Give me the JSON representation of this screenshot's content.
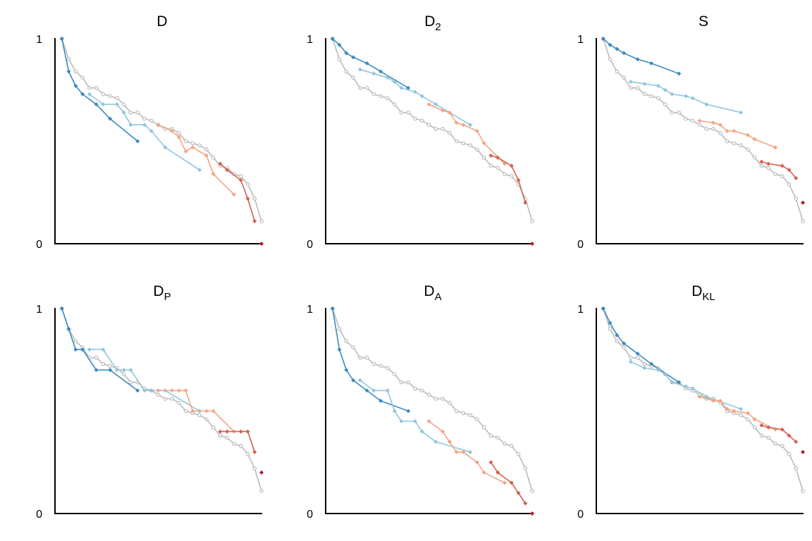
{
  "chart_data": [
    {
      "type": "line",
      "title": "D",
      "title_sub": "",
      "xlim": [
        0,
        30
      ],
      "ylim": [
        0,
        1
      ],
      "yticks": [
        "0",
        "1"
      ],
      "series": [
        {
          "name": "gray",
          "color": "#bbbbbb",
          "x": [
            1,
            2,
            3,
            4,
            5,
            6,
            7,
            8,
            9,
            10,
            11,
            12,
            13,
            14,
            15,
            16,
            17,
            18,
            19,
            20,
            21,
            22,
            23,
            24,
            25,
            26,
            27,
            28,
            29,
            30
          ],
          "y": [
            1.0,
            0.9,
            0.84,
            0.81,
            0.76,
            0.76,
            0.73,
            0.72,
            0.71,
            0.68,
            0.64,
            0.64,
            0.61,
            0.6,
            0.58,
            0.56,
            0.56,
            0.54,
            0.5,
            0.49,
            0.48,
            0.46,
            0.42,
            0.38,
            0.37,
            0.34,
            0.33,
            0.29,
            0.22,
            0.11
          ]
        },
        {
          "name": "dark-blue",
          "color": "#3d8bbf",
          "x": [
            1,
            2,
            3,
            4,
            6,
            8,
            12
          ],
          "y": [
            1.0,
            0.84,
            0.77,
            0.73,
            0.68,
            0.61,
            0.5
          ]
        },
        {
          "name": "light-blue",
          "color": "#92c5de",
          "x": [
            5,
            7,
            9,
            10,
            11,
            13,
            14,
            16,
            21
          ],
          "y": [
            0.73,
            0.68,
            0.68,
            0.64,
            0.58,
            0.58,
            0.55,
            0.47,
            0.36
          ]
        },
        {
          "name": "orange",
          "color": "#f4a582",
          "x": [
            15,
            17,
            18,
            19,
            20,
            22,
            23,
            26
          ],
          "y": [
            0.58,
            0.55,
            0.52,
            0.45,
            0.47,
            0.43,
            0.34,
            0.24
          ]
        },
        {
          "name": "red",
          "color": "#d6604d",
          "x": [
            24,
            25,
            27,
            28,
            29
          ],
          "y": [
            0.39,
            0.36,
            0.31,
            0.22,
            0.11
          ]
        },
        {
          "name": "dark-red",
          "color": "#b2182b",
          "x": [
            30
          ],
          "y": [
            0.0
          ]
        }
      ]
    },
    {
      "type": "line",
      "title": "D",
      "title_sub": "2",
      "xlim": [
        0,
        30
      ],
      "ylim": [
        0,
        1
      ],
      "yticks": [
        "0",
        "1"
      ],
      "series": [
        {
          "name": "gray",
          "color": "#bbbbbb",
          "x": [
            1,
            2,
            3,
            4,
            5,
            6,
            7,
            8,
            9,
            10,
            11,
            12,
            13,
            14,
            15,
            16,
            17,
            18,
            19,
            20,
            21,
            22,
            23,
            24,
            25,
            26,
            27,
            28,
            29,
            30
          ],
          "y": [
            1.0,
            0.9,
            0.84,
            0.81,
            0.76,
            0.76,
            0.73,
            0.72,
            0.71,
            0.68,
            0.64,
            0.64,
            0.61,
            0.6,
            0.58,
            0.56,
            0.56,
            0.54,
            0.5,
            0.49,
            0.48,
            0.46,
            0.42,
            0.38,
            0.37,
            0.34,
            0.33,
            0.29,
            0.22,
            0.11
          ]
        },
        {
          "name": "dark-blue",
          "color": "#3d8bbf",
          "x": [
            1,
            2,
            3,
            4,
            6,
            8,
            12
          ],
          "y": [
            1.0,
            0.97,
            0.93,
            0.91,
            0.88,
            0.84,
            0.76
          ]
        },
        {
          "name": "light-blue",
          "color": "#92c5de",
          "x": [
            5,
            7,
            9,
            10,
            11,
            13,
            14,
            16,
            21
          ],
          "y": [
            0.85,
            0.83,
            0.81,
            0.79,
            0.76,
            0.74,
            0.72,
            0.68,
            0.58
          ]
        },
        {
          "name": "orange",
          "color": "#f4a582",
          "x": [
            15,
            17,
            18,
            19,
            20,
            22,
            23,
            26
          ],
          "y": [
            0.68,
            0.65,
            0.64,
            0.59,
            0.58,
            0.55,
            0.49,
            0.39
          ]
        },
        {
          "name": "red",
          "color": "#d6604d",
          "x": [
            24,
            25,
            27,
            28,
            29
          ],
          "y": [
            0.43,
            0.42,
            0.38,
            0.31,
            0.2
          ]
        },
        {
          "name": "dark-red",
          "color": "#b2182b",
          "x": [
            30
          ],
          "y": [
            0.0
          ]
        }
      ]
    },
    {
      "type": "line",
      "title": "S",
      "title_sub": "",
      "xlim": [
        0,
        30
      ],
      "ylim": [
        0,
        1
      ],
      "yticks": [
        "0",
        "1"
      ],
      "series": [
        {
          "name": "gray",
          "color": "#bbbbbb",
          "x": [
            1,
            2,
            3,
            4,
            5,
            6,
            7,
            8,
            9,
            10,
            11,
            12,
            13,
            14,
            15,
            16,
            17,
            18,
            19,
            20,
            21,
            22,
            23,
            24,
            25,
            26,
            27,
            28,
            29,
            30
          ],
          "y": [
            1.0,
            0.9,
            0.84,
            0.81,
            0.76,
            0.76,
            0.73,
            0.72,
            0.71,
            0.68,
            0.64,
            0.64,
            0.61,
            0.6,
            0.58,
            0.56,
            0.56,
            0.54,
            0.5,
            0.49,
            0.48,
            0.46,
            0.42,
            0.38,
            0.37,
            0.34,
            0.33,
            0.29,
            0.22,
            0.11
          ]
        },
        {
          "name": "dark-blue",
          "color": "#3d8bbf",
          "x": [
            1,
            2,
            3,
            4,
            6,
            8,
            12
          ],
          "y": [
            1.0,
            0.97,
            0.95,
            0.93,
            0.9,
            0.88,
            0.83
          ]
        },
        {
          "name": "light-blue",
          "color": "#92c5de",
          "x": [
            5,
            7,
            9,
            10,
            11,
            13,
            14,
            16,
            21
          ],
          "y": [
            0.79,
            0.78,
            0.77,
            0.75,
            0.73,
            0.72,
            0.71,
            0.68,
            0.64
          ]
        },
        {
          "name": "orange",
          "color": "#f4a582",
          "x": [
            15,
            17,
            18,
            19,
            20,
            22,
            23,
            26
          ],
          "y": [
            0.6,
            0.59,
            0.58,
            0.55,
            0.55,
            0.53,
            0.51,
            0.47
          ]
        },
        {
          "name": "red",
          "color": "#d6604d",
          "x": [
            24,
            25,
            27,
            28,
            29
          ],
          "y": [
            0.4,
            0.39,
            0.38,
            0.36,
            0.32
          ]
        },
        {
          "name": "dark-red",
          "color": "#b2182b",
          "x": [
            30
          ],
          "y": [
            0.2
          ]
        }
      ]
    },
    {
      "type": "line",
      "title": "D",
      "title_sub": "P",
      "xlim": [
        0,
        30
      ],
      "ylim": [
        0,
        1
      ],
      "yticks": [
        "0",
        "1"
      ],
      "series": [
        {
          "name": "gray",
          "color": "#bbbbbb",
          "x": [
            1,
            2,
            3,
            4,
            5,
            6,
            7,
            8,
            9,
            10,
            11,
            12,
            13,
            14,
            15,
            16,
            17,
            18,
            19,
            20,
            21,
            22,
            23,
            24,
            25,
            26,
            27,
            28,
            29,
            30
          ],
          "y": [
            1.0,
            0.9,
            0.84,
            0.81,
            0.76,
            0.76,
            0.73,
            0.72,
            0.71,
            0.68,
            0.64,
            0.64,
            0.61,
            0.6,
            0.58,
            0.56,
            0.56,
            0.54,
            0.5,
            0.49,
            0.48,
            0.46,
            0.42,
            0.38,
            0.37,
            0.34,
            0.33,
            0.29,
            0.22,
            0.11
          ]
        },
        {
          "name": "dark-blue",
          "color": "#3d8bbf",
          "x": [
            1,
            2,
            3,
            4,
            6,
            8,
            12
          ],
          "y": [
            1.0,
            0.9,
            0.8,
            0.8,
            0.7,
            0.7,
            0.6
          ]
        },
        {
          "name": "light-blue",
          "color": "#92c5de",
          "x": [
            5,
            7,
            9,
            10,
            11,
            13,
            14,
            16,
            21
          ],
          "y": [
            0.8,
            0.8,
            0.7,
            0.7,
            0.7,
            0.6,
            0.6,
            0.6,
            0.5
          ]
        },
        {
          "name": "orange",
          "color": "#f4a582",
          "x": [
            15,
            17,
            18,
            19,
            20,
            22,
            23,
            26
          ],
          "y": [
            0.6,
            0.6,
            0.6,
            0.6,
            0.5,
            0.5,
            0.5,
            0.4
          ]
        },
        {
          "name": "red",
          "color": "#d6604d",
          "x": [
            24,
            25,
            27,
            28,
            29
          ],
          "y": [
            0.4,
            0.4,
            0.4,
            0.4,
            0.3
          ]
        },
        {
          "name": "dark-red",
          "color": "#b2182b",
          "x": [
            30
          ],
          "y": [
            0.2
          ]
        }
      ]
    },
    {
      "type": "line",
      "title": "D",
      "title_sub": "A",
      "xlim": [
        0,
        30
      ],
      "ylim": [
        0,
        1
      ],
      "yticks": [
        "0",
        "1"
      ],
      "series": [
        {
          "name": "gray",
          "color": "#bbbbbb",
          "x": [
            1,
            2,
            3,
            4,
            5,
            6,
            7,
            8,
            9,
            10,
            11,
            12,
            13,
            14,
            15,
            16,
            17,
            18,
            19,
            20,
            21,
            22,
            23,
            24,
            25,
            26,
            27,
            28,
            29,
            30
          ],
          "y": [
            1.0,
            0.9,
            0.84,
            0.81,
            0.76,
            0.76,
            0.73,
            0.72,
            0.71,
            0.68,
            0.64,
            0.64,
            0.61,
            0.6,
            0.58,
            0.56,
            0.56,
            0.54,
            0.5,
            0.49,
            0.48,
            0.46,
            0.42,
            0.38,
            0.37,
            0.34,
            0.33,
            0.29,
            0.22,
            0.11
          ]
        },
        {
          "name": "dark-blue",
          "color": "#3d8bbf",
          "x": [
            1,
            2,
            3,
            4,
            6,
            8,
            12
          ],
          "y": [
            1.0,
            0.8,
            0.7,
            0.65,
            0.6,
            0.55,
            0.5
          ]
        },
        {
          "name": "light-blue",
          "color": "#92c5de",
          "x": [
            5,
            7,
            9,
            10,
            11,
            13,
            14,
            16,
            21
          ],
          "y": [
            0.65,
            0.6,
            0.6,
            0.5,
            0.45,
            0.45,
            0.4,
            0.35,
            0.3
          ]
        },
        {
          "name": "orange",
          "color": "#f4a582",
          "x": [
            15,
            17,
            18,
            19,
            20,
            22,
            23,
            26
          ],
          "y": [
            0.45,
            0.4,
            0.35,
            0.3,
            0.3,
            0.25,
            0.2,
            0.15
          ]
        },
        {
          "name": "red",
          "color": "#d6604d",
          "x": [
            24,
            25,
            27,
            28,
            29
          ],
          "y": [
            0.25,
            0.2,
            0.15,
            0.1,
            0.05
          ]
        },
        {
          "name": "dark-red",
          "color": "#b2182b",
          "x": [
            30
          ],
          "y": [
            0.0
          ]
        }
      ]
    },
    {
      "type": "line",
      "title": "D",
      "title_sub": "KL",
      "xlim": [
        0,
        30
      ],
      "ylim": [
        0,
        1
      ],
      "yticks": [
        "0",
        "1"
      ],
      "series": [
        {
          "name": "gray",
          "color": "#bbbbbb",
          "x": [
            1,
            2,
            3,
            4,
            5,
            6,
            7,
            8,
            9,
            10,
            11,
            12,
            13,
            14,
            15,
            16,
            17,
            18,
            19,
            20,
            21,
            22,
            23,
            24,
            25,
            26,
            27,
            28,
            29,
            30
          ],
          "y": [
            1.0,
            0.9,
            0.84,
            0.81,
            0.76,
            0.76,
            0.73,
            0.72,
            0.71,
            0.68,
            0.64,
            0.64,
            0.61,
            0.6,
            0.58,
            0.56,
            0.56,
            0.54,
            0.5,
            0.49,
            0.48,
            0.46,
            0.42,
            0.38,
            0.37,
            0.34,
            0.33,
            0.29,
            0.22,
            0.11
          ]
        },
        {
          "name": "dark-blue",
          "color": "#3d8bbf",
          "x": [
            1,
            2,
            3,
            4,
            6,
            8,
            12
          ],
          "y": [
            1.0,
            0.93,
            0.87,
            0.83,
            0.78,
            0.73,
            0.64
          ]
        },
        {
          "name": "light-blue",
          "color": "#92c5de",
          "x": [
            5,
            7,
            9,
            10,
            11,
            13,
            14,
            16,
            21
          ],
          "y": [
            0.74,
            0.71,
            0.7,
            0.68,
            0.64,
            0.62,
            0.61,
            0.57,
            0.51
          ]
        },
        {
          "name": "orange",
          "color": "#f4a582",
          "x": [
            15,
            17,
            18,
            19,
            20,
            22,
            23,
            26
          ],
          "y": [
            0.57,
            0.55,
            0.55,
            0.51,
            0.5,
            0.49,
            0.46,
            0.41
          ]
        },
        {
          "name": "red",
          "color": "#d6604d",
          "x": [
            24,
            25,
            27,
            28,
            29
          ],
          "y": [
            0.43,
            0.42,
            0.41,
            0.38,
            0.35
          ]
        },
        {
          "name": "dark-red",
          "color": "#b2182b",
          "x": [
            30
          ],
          "y": [
            0.3
          ]
        }
      ]
    }
  ]
}
